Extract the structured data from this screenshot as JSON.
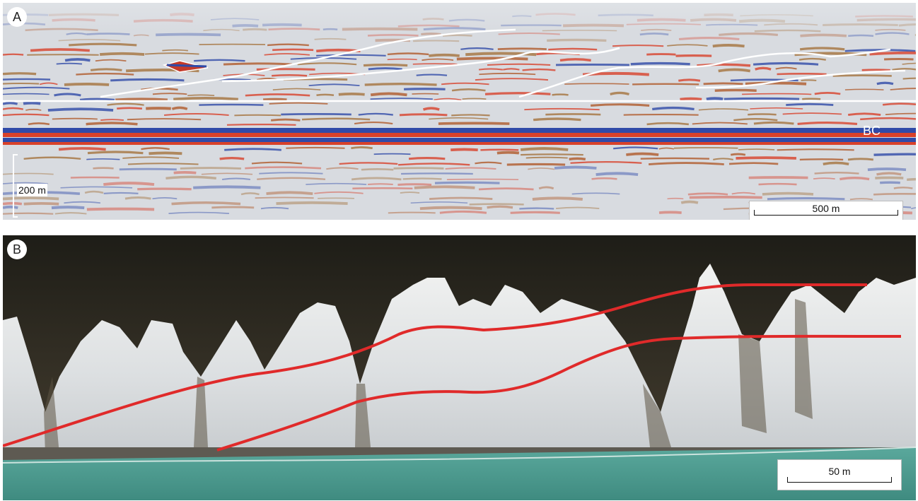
{
  "panel_a": {
    "letter": "A",
    "reflector_label": "BC",
    "vertical_scale_label": "200 m",
    "horizontal_scale_label": "500 m",
    "colors": {
      "positive": "#d8412a",
      "negative": "#2f4aa8",
      "background": "#d8dbe0",
      "interpretation": "#ffffff"
    }
  },
  "panel_b": {
    "letter": "B",
    "horizontal_scale_label": "50 m",
    "colors": {
      "cliff": "#dfe2e4",
      "vegetation": "#2e2b22",
      "sea": "#4e9e93",
      "interpretation": "#e02a2a"
    }
  }
}
